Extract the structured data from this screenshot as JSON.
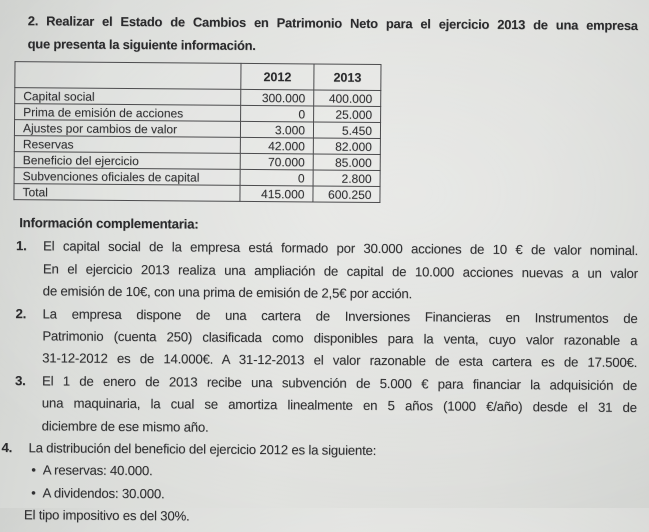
{
  "doc": {
    "heading": {
      "line1": "2. Realizar el Estado de Cambios en Patrimonio Neto para el ejercicio 2013 de una empresa",
      "line2": "que presenta la siguiente información."
    }
  },
  "table": {
    "col_headers": [
      "",
      "2012",
      "2013"
    ],
    "rows": [
      {
        "label": "Capital social",
        "y2012": "300.000",
        "y2013": "400.000"
      },
      {
        "label": "Prima de emisión de acciones",
        "y2012": "0",
        "y2013": "25.000"
      },
      {
        "label": "Ajustes por cambios de valor",
        "y2012": "3.000",
        "y2013": "5.450"
      },
      {
        "label": "Reservas",
        "y2012": "42.000",
        "y2013": "82.000"
      },
      {
        "label": "Beneficio del ejercicio",
        "y2012": "70.000",
        "y2013": "85.000"
      },
      {
        "label": "Subvenciones oficiales de capital",
        "y2012": "0",
        "y2013": "2.800"
      },
      {
        "label": "Total",
        "y2012": "415.000",
        "y2013": "600.250"
      }
    ]
  },
  "comp": {
    "heading": "Información complementaria:",
    "bullet_char": "•",
    "items": [
      {
        "number": "1.",
        "lines": [
          "El capital social de la empresa está formado por 30.000 acciones de 10 € de valor nominal.",
          "En el ejercicio 2013 realiza una ampliación de capital de 10.000 acciones nuevas a un valor",
          "de emisión de 10€, con una prima de emisión de 2,5€ por acción."
        ]
      },
      {
        "number": "2.",
        "lines": [
          "La empresa dispone de una cartera de Inversiones Financieras en Instrumentos de",
          "Patrimonio (cuenta 250) clasificada como disponibles para la venta, cuyo valor razonable a",
          "31-12-2012 es de 14.000€. A 31-12-2013 el valor razonable de esta cartera es de 17.500€."
        ]
      },
      {
        "number": "3.",
        "lines": [
          "El 1 de enero de 2013 recibe una subvención de 5.000 € para financiar la adquisición de",
          "una maquinaria, la cual se amortiza linealmente en 5 años (1000 €/año) desde el 31 de",
          "diciembre de ese mismo año."
        ]
      },
      {
        "number": "4.",
        "lines": [
          "La distribución del beneficio del ejercicio 2012 es la siguiente:"
        ],
        "bullets": [
          "A reservas: 40.000.",
          "A dividendos: 30.000."
        ],
        "footer": "El tipo impositivo es del 30%."
      }
    ]
  }
}
